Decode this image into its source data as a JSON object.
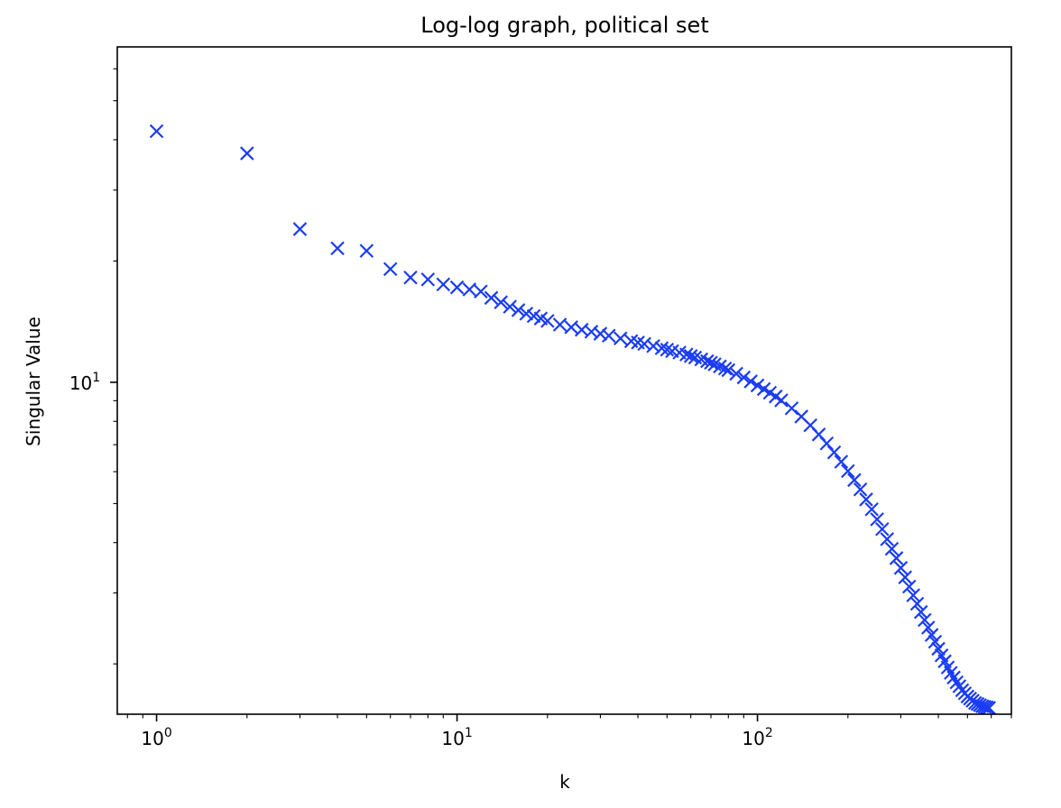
{
  "chart_data": {
    "type": "scatter",
    "title": "Log-log graph, political set",
    "xlabel": "k",
    "ylabel": "Singular Value",
    "xscale": "log",
    "yscale": "log",
    "xlim": [
      0.74,
      700
    ],
    "ylim": [
      1.5,
      68
    ],
    "grid": false,
    "marker": "x",
    "color": "#1a3cf5",
    "x_ticks": [
      {
        "value": 1,
        "base": "10",
        "exp": "0"
      },
      {
        "value": 10,
        "base": "10",
        "exp": "1"
      },
      {
        "value": 100,
        "base": "10",
        "exp": "2"
      }
    ],
    "y_ticks": [
      {
        "value": 10,
        "base": "10",
        "exp": "1"
      }
    ],
    "x": [
      1,
      2,
      3,
      4,
      5,
      6,
      7,
      8,
      9,
      10,
      11,
      12,
      13,
      14,
      15,
      16,
      17,
      18,
      19,
      20,
      22,
      24,
      26,
      28,
      30,
      32,
      35,
      38,
      40,
      42,
      45,
      48,
      50,
      52,
      55,
      58,
      60,
      62,
      65,
      68,
      70,
      72,
      75,
      78,
      80,
      85,
      90,
      95,
      100,
      105,
      110,
      115,
      120,
      130,
      140,
      150,
      160,
      170,
      180,
      190,
      200,
      210,
      220,
      230,
      240,
      250,
      260,
      270,
      280,
      290,
      300,
      310,
      320,
      330,
      340,
      350,
      360,
      370,
      380,
      390,
      400,
      410,
      420,
      430,
      440,
      450,
      460,
      470,
      480,
      490,
      500,
      510,
      520,
      530,
      540,
      550,
      560,
      570,
      580,
      590
    ],
    "y": [
      42,
      37,
      24,
      21.5,
      21.2,
      19.1,
      18.2,
      18.0,
      17.5,
      17.2,
      17.0,
      16.8,
      16.2,
      15.8,
      15.4,
      15.1,
      14.8,
      14.6,
      14.4,
      14.2,
      13.9,
      13.7,
      13.5,
      13.35,
      13.2,
      13.05,
      12.85,
      12.65,
      12.55,
      12.45,
      12.3,
      12.15,
      12.05,
      11.95,
      11.85,
      11.72,
      11.62,
      11.52,
      11.4,
      11.28,
      11.18,
      11.08,
      10.95,
      10.82,
      10.72,
      10.5,
      10.28,
      10.05,
      9.82,
      9.62,
      9.42,
      9.22,
      9.02,
      8.62,
      8.22,
      7.82,
      7.42,
      7.05,
      6.7,
      6.35,
      6.02,
      5.72,
      5.42,
      5.12,
      4.84,
      4.57,
      4.32,
      4.08,
      3.86,
      3.66,
      3.46,
      3.28,
      3.11,
      2.96,
      2.82,
      2.69,
      2.57,
      2.46,
      2.36,
      2.27,
      2.18,
      2.1,
      2.03,
      1.96,
      1.9,
      1.85,
      1.8,
      1.76,
      1.72,
      1.69,
      1.66,
      1.64,
      1.62,
      1.6,
      1.59,
      1.58,
      1.57,
      1.565,
      1.56,
      1.555
    ]
  }
}
